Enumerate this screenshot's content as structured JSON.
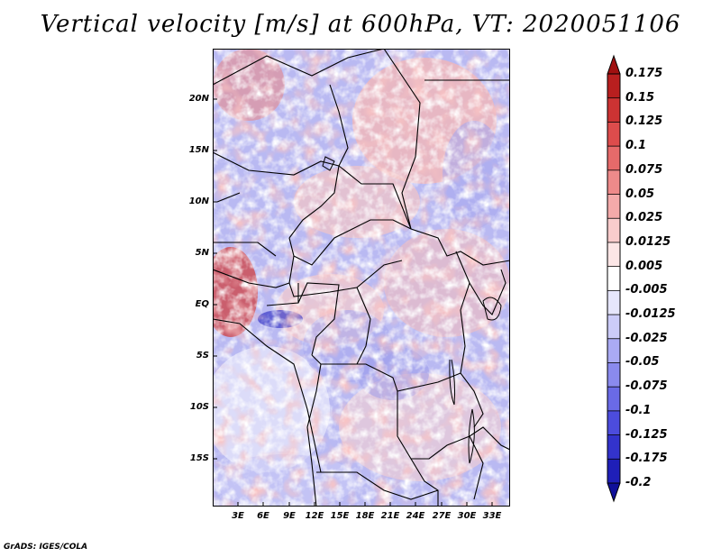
{
  "title": "Vertical velocity [m/s] at 600hPa, VT: 2020051106",
  "map": {
    "variable": "Vertical velocity",
    "units": "m/s",
    "level": "600hPa",
    "valid_time": "2020051106",
    "lat_labels": [
      "20N",
      "15N",
      "10N",
      "5N",
      "EQ",
      "5S",
      "10S",
      "15S"
    ],
    "lon_labels": [
      "3E",
      "6E",
      "9E",
      "12E",
      "15E",
      "18E",
      "21E",
      "24E",
      "27E",
      "30E",
      "33E"
    ]
  },
  "colorbar": {
    "labels": [
      "0.175",
      "0.15",
      "0.125",
      "0.1",
      "0.075",
      "0.05",
      "0.025",
      "0.0125",
      "0.005",
      "-0.005",
      "-0.0125",
      "-0.025",
      "-0.05",
      "-0.075",
      "-0.1",
      "-0.125",
      "-0.175",
      "-0.2"
    ],
    "colors": [
      "#a01010",
      "#b81f1f",
      "#cc3333",
      "#dd4c4c",
      "#e66a6a",
      "#ee8a8a",
      "#f4aaaa",
      "#f9cccc",
      "#fce6e6",
      "#ffffff",
      "#e6e6fc",
      "#ccccf9",
      "#aaaaf4",
      "#8a8aee",
      "#6a6ae6",
      "#4c4cdd",
      "#3333cc",
      "#1f1fb8",
      "#10109a"
    ]
  },
  "footer": "GrADS: IGES/COLA"
}
